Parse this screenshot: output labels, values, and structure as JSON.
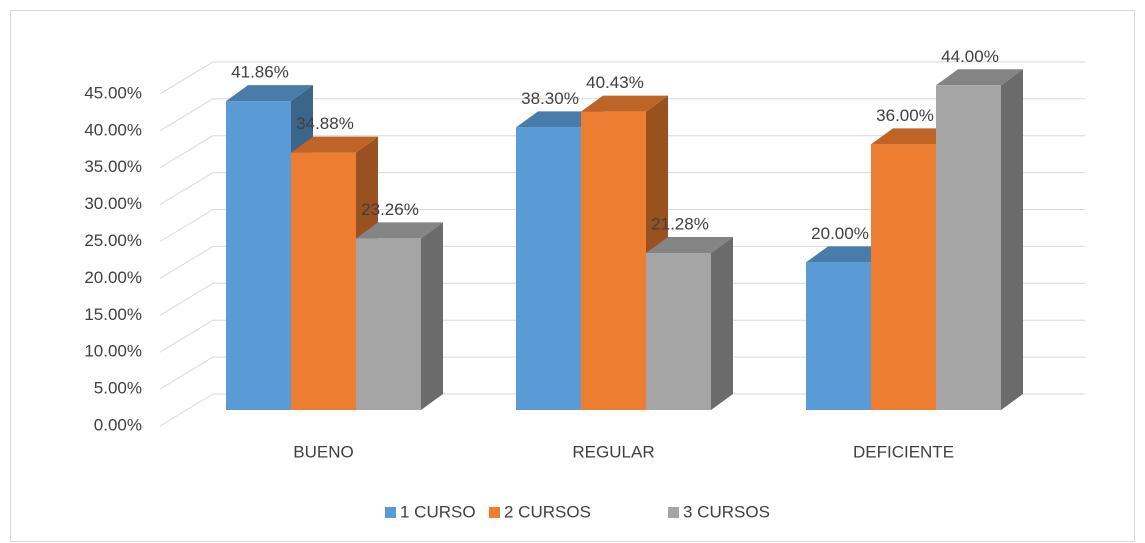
{
  "chart_data": {
    "type": "bar3d",
    "categories": [
      "BUENO",
      "REGULAR",
      "DEFICIENTE"
    ],
    "series": [
      {
        "name": "1 CURSO",
        "color": "#5b9bd5",
        "values": [
          41.86,
          38.3,
          20.0
        ],
        "value_labels": [
          "41.86%",
          "38.30%",
          "20.00%"
        ]
      },
      {
        "name": "2 CURSOS",
        "color": "#ed7d31",
        "values": [
          34.88,
          40.43,
          36.0
        ],
        "value_labels": [
          "34.88%",
          "40.43%",
          "36.00%"
        ]
      },
      {
        "name": "3 CURSOS",
        "color": "#a5a5a5",
        "values": [
          23.26,
          21.28,
          44.0
        ],
        "value_labels": [
          "23.26%",
          "21.28%",
          "44.00%"
        ]
      }
    ],
    "ylim": [
      0,
      45
    ],
    "yticks": [
      {
        "value": 0,
        "label": "0.00%"
      },
      {
        "value": 5,
        "label": "5.00%"
      },
      {
        "value": 10,
        "label": "10.00%"
      },
      {
        "value": 15,
        "label": "15.00%"
      },
      {
        "value": 20,
        "label": "20.00%"
      },
      {
        "value": 25,
        "label": "25.00%"
      },
      {
        "value": 30,
        "label": "30.00%"
      },
      {
        "value": 35,
        "label": "35.00%"
      },
      {
        "value": 40,
        "label": "40.00%"
      },
      {
        "value": 45,
        "label": "45.00%"
      }
    ],
    "grid": true,
    "legend": "bottom"
  }
}
